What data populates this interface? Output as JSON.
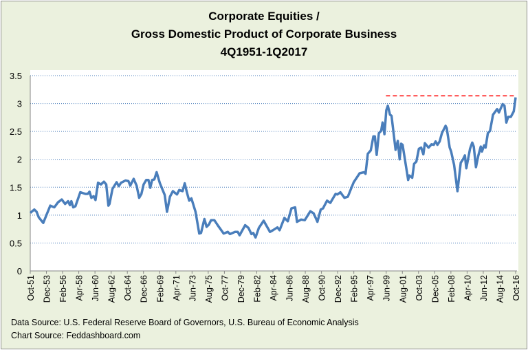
{
  "chart_data": {
    "type": "line",
    "title": [
      "Corporate Equities /",
      "Gross Domestic Product of Corporate Business",
      "4Q1951-1Q2017"
    ],
    "xlabel": "",
    "ylabel": "",
    "ylim": [
      0,
      3.5
    ],
    "yticks": [
      "0",
      "0.5",
      "1",
      "1.5",
      "2",
      "2.5",
      "3",
      "3.5"
    ],
    "grid": true,
    "xticklabels": [
      "Oct-51",
      "Dec-53",
      "Feb-56",
      "Apr-58",
      "Jun-60",
      "Aug-62",
      "Oct-64",
      "Dec-66",
      "Feb-69",
      "Apr-71",
      "Jun-73",
      "Aug-75",
      "Oct-77",
      "Dec-79",
      "Feb-82",
      "Apr-84",
      "Jun-86",
      "Aug-88",
      "Oct-90",
      "Dec-92",
      "Feb-95",
      "Apr-97",
      "Jun-99",
      "Aug-01",
      "Oct-03",
      "Dec-05",
      "Feb-08",
      "Apr-10",
      "Jun-12",
      "Aug-14",
      "Oct-16"
    ],
    "xlim": [
      1951.75,
      2017.25
    ],
    "series": [
      {
        "name": "Corporate Equities / GDP of Corporate Business",
        "color": "#4a7ebb",
        "points": [
          [
            1951.75,
            1.04
          ],
          [
            1952.3,
            1.1
          ],
          [
            1952.6,
            1.06
          ],
          [
            1952.9,
            0.96
          ],
          [
            1953.5,
            0.86
          ],
          [
            1954.45,
            1.17
          ],
          [
            1955,
            1.14
          ],
          [
            1955.5,
            1.23
          ],
          [
            1956,
            1.28
          ],
          [
            1956.45,
            1.2
          ],
          [
            1956.85,
            1.25
          ],
          [
            1957.1,
            1.18
          ],
          [
            1957.3,
            1.25
          ],
          [
            1957.55,
            1.14
          ],
          [
            1957.85,
            1.16
          ],
          [
            1958.5,
            1.41
          ],
          [
            1959.2,
            1.38
          ],
          [
            1959.5,
            1.38
          ],
          [
            1959.75,
            1.42
          ],
          [
            1960,
            1.31
          ],
          [
            1960.3,
            1.34
          ],
          [
            1960.55,
            1.27
          ],
          [
            1960.9,
            1.58
          ],
          [
            1961.3,
            1.55
          ],
          [
            1961.7,
            1.6
          ],
          [
            1962,
            1.55
          ],
          [
            1962.3,
            1.17
          ],
          [
            1962.45,
            1.2
          ],
          [
            1962.85,
            1.47
          ],
          [
            1963.4,
            1.59
          ],
          [
            1963.7,
            1.52
          ],
          [
            1964,
            1.58
          ],
          [
            1964.6,
            1.62
          ],
          [
            1965,
            1.61
          ],
          [
            1965.25,
            1.53
          ],
          [
            1965.7,
            1.65
          ],
          [
            1966.1,
            1.53
          ],
          [
            1966.45,
            1.31
          ],
          [
            1966.75,
            1.38
          ],
          [
            1967.05,
            1.55
          ],
          [
            1967.4,
            1.63
          ],
          [
            1967.7,
            1.63
          ],
          [
            1967.95,
            1.49
          ],
          [
            1968.2,
            1.63
          ],
          [
            1968.5,
            1.64
          ],
          [
            1968.8,
            1.77
          ],
          [
            1969.25,
            1.57
          ],
          [
            1969.9,
            1.36
          ],
          [
            1970.2,
            1.06
          ],
          [
            1970.6,
            1.33
          ],
          [
            1971,
            1.43
          ],
          [
            1971.55,
            1.37
          ],
          [
            1971.85,
            1.45
          ],
          [
            1972.3,
            1.43
          ],
          [
            1972.6,
            1.57
          ],
          [
            1972.9,
            1.4
          ],
          [
            1973.2,
            1.26
          ],
          [
            1973.5,
            1.3
          ],
          [
            1974.05,
            1.06
          ],
          [
            1974.55,
            0.67
          ],
          [
            1974.8,
            0.68
          ],
          [
            1975.25,
            0.93
          ],
          [
            1975.55,
            0.79
          ],
          [
            1975.85,
            0.83
          ],
          [
            1976.15,
            0.91
          ],
          [
            1976.6,
            0.91
          ],
          [
            1977.1,
            0.81
          ],
          [
            1977.85,
            0.67
          ],
          [
            1978.4,
            0.7
          ],
          [
            1978.7,
            0.66
          ],
          [
            1979.4,
            0.7
          ],
          [
            1979.75,
            0.7
          ],
          [
            1980,
            0.64
          ],
          [
            1980.75,
            0.82
          ],
          [
            1981.2,
            0.77
          ],
          [
            1981.6,
            0.66
          ],
          [
            1981.85,
            0.68
          ],
          [
            1982.15,
            0.6
          ],
          [
            1982.6,
            0.77
          ],
          [
            1983.25,
            0.9
          ],
          [
            1984.1,
            0.7
          ],
          [
            1984.5,
            0.73
          ],
          [
            1985.1,
            0.78
          ],
          [
            1985.4,
            0.73
          ],
          [
            1986.05,
            0.95
          ],
          [
            1986.5,
            0.89
          ],
          [
            1987,
            1.12
          ],
          [
            1987.5,
            1.14
          ],
          [
            1987.75,
            0.88
          ],
          [
            1988.3,
            0.92
          ],
          [
            1988.8,
            0.91
          ],
          [
            1989.55,
            1.07
          ],
          [
            1990,
            1.03
          ],
          [
            1990.5,
            0.88
          ],
          [
            1990.95,
            1.1
          ],
          [
            1991.25,
            1.12
          ],
          [
            1991.8,
            1.26
          ],
          [
            1992.25,
            1.22
          ],
          [
            1992.95,
            1.38
          ],
          [
            1993.2,
            1.37
          ],
          [
            1993.6,
            1.41
          ],
          [
            1994.15,
            1.31
          ],
          [
            1994.6,
            1.33
          ],
          [
            1995.4,
            1.59
          ],
          [
            1996.2,
            1.75
          ],
          [
            1996.8,
            1.77
          ],
          [
            1997,
            1.74
          ],
          [
            1997.3,
            2.1
          ],
          [
            1997.7,
            2.16
          ],
          [
            1998.05,
            2.41
          ],
          [
            1998.25,
            2.41
          ],
          [
            1998.5,
            2.08
          ],
          [
            1998.8,
            2.47
          ],
          [
            1999.1,
            2.51
          ],
          [
            1999.3,
            2.66
          ],
          [
            1999.55,
            2.45
          ],
          [
            1999.8,
            2.88
          ],
          [
            2000,
            2.96
          ],
          [
            2000.3,
            2.8
          ],
          [
            2000.5,
            2.78
          ],
          [
            2001.05,
            2.17
          ],
          [
            2001.35,
            2.33
          ],
          [
            2001.6,
            2.0
          ],
          [
            2001.8,
            2.28
          ],
          [
            2002.0,
            2.26
          ],
          [
            2002.75,
            1.63
          ],
          [
            2002.9,
            1.71
          ],
          [
            2003.3,
            1.67
          ],
          [
            2003.55,
            1.92
          ],
          [
            2003.85,
            1.96
          ],
          [
            2004.2,
            2.19
          ],
          [
            2004.5,
            2.21
          ],
          [
            2004.8,
            2.09
          ],
          [
            2005,
            2.29
          ],
          [
            2005.5,
            2.21
          ],
          [
            2005.9,
            2.27
          ],
          [
            2006.2,
            2.26
          ],
          [
            2006.45,
            2.32
          ],
          [
            2006.7,
            2.26
          ],
          [
            2007.0,
            2.32
          ],
          [
            2007.3,
            2.47
          ],
          [
            2007.8,
            2.6
          ],
          [
            2007.95,
            2.56
          ],
          [
            2008.35,
            2.21
          ],
          [
            2008.55,
            2.14
          ],
          [
            2008.95,
            1.9
          ],
          [
            2009.4,
            1.43
          ],
          [
            2009.85,
            1.94
          ],
          [
            2010.15,
            2.0
          ],
          [
            2010.4,
            2.07
          ],
          [
            2010.6,
            1.84
          ],
          [
            2011.1,
            2.19
          ],
          [
            2011.4,
            2.3
          ],
          [
            2011.6,
            2.23
          ],
          [
            2011.9,
            1.86
          ],
          [
            2012.2,
            2.06
          ],
          [
            2012.55,
            2.23
          ],
          [
            2012.7,
            2.14
          ],
          [
            2013,
            2.25
          ],
          [
            2013.2,
            2.21
          ],
          [
            2013.5,
            2.47
          ],
          [
            2013.8,
            2.51
          ],
          [
            2014.2,
            2.8
          ],
          [
            2014.75,
            2.9
          ],
          [
            2015,
            2.84
          ],
          [
            2015.5,
            2.99
          ],
          [
            2015.75,
            2.96
          ],
          [
            2016,
            2.66
          ],
          [
            2016.25,
            2.76
          ],
          [
            2016.6,
            2.76
          ],
          [
            2017,
            2.86
          ],
          [
            2017.25,
            3.11
          ]
        ]
      }
    ],
    "reference_line": {
      "value": 3.14,
      "from": 1999.75,
      "to": 2017.25,
      "color": "#ff4040",
      "style": "dashed"
    }
  },
  "sources": {
    "data": "Data Source: U.S. Federal Reserve  Board of Governors, U.S. Bureau of Economic Analysis",
    "chart": "Chart Source: Feddashboard.com"
  }
}
